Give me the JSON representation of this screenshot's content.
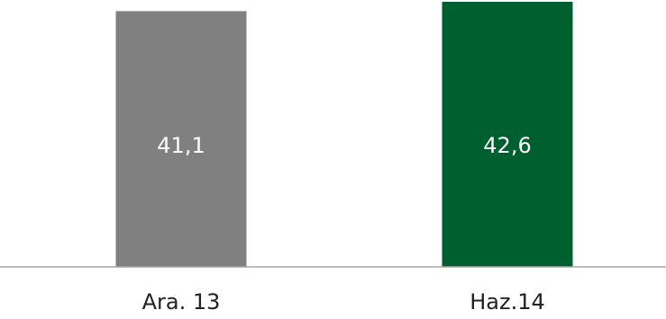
{
  "chart_data": {
    "type": "bar",
    "categories": [
      "Ara. 13",
      "Haz.14"
    ],
    "values": [
      41.1,
      42.6
    ],
    "value_labels": [
      "41,1",
      "42,6"
    ],
    "colors": [
      "#808080",
      "#005f2f"
    ],
    "axis_color": "#a6a6a6",
    "label_color": "#ffffff",
    "title": "",
    "xlabel": "",
    "ylabel": "",
    "grid": false,
    "legend": "none"
  }
}
